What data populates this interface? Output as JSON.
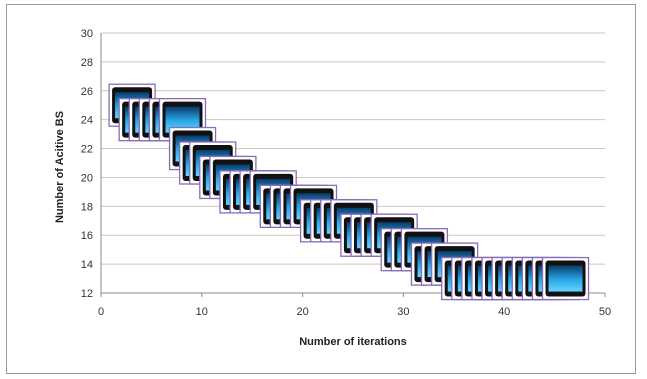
{
  "chart_data": {
    "type": "scatter",
    "title": "",
    "xlabel": "Number of iterations",
    "ylabel": "Number of Acitive BS",
    "xlim": [
      0,
      50
    ],
    "ylim": [
      12,
      30
    ],
    "x_ticks": [
      "0",
      "10",
      "20",
      "30",
      "40",
      "50"
    ],
    "y_ticks": [
      "12",
      "14",
      "16",
      "18",
      "20",
      "22",
      "24",
      "26",
      "28",
      "30"
    ],
    "grid": true,
    "marker": "base-station-icon",
    "points": [
      {
        "x": 1,
        "y": 25
      },
      {
        "x": 2,
        "y": 24
      },
      {
        "x": 3,
        "y": 24
      },
      {
        "x": 4,
        "y": 24
      },
      {
        "x": 5,
        "y": 24
      },
      {
        "x": 6,
        "y": 24
      },
      {
        "x": 7,
        "y": 22
      },
      {
        "x": 8,
        "y": 21
      },
      {
        "x": 9,
        "y": 21
      },
      {
        "x": 10,
        "y": 20
      },
      {
        "x": 11,
        "y": 20
      },
      {
        "x": 12,
        "y": 19
      },
      {
        "x": 13,
        "y": 19
      },
      {
        "x": 14,
        "y": 19
      },
      {
        "x": 15,
        "y": 19
      },
      {
        "x": 16,
        "y": 18
      },
      {
        "x": 17,
        "y": 18
      },
      {
        "x": 18,
        "y": 18
      },
      {
        "x": 19,
        "y": 18
      },
      {
        "x": 20,
        "y": 17
      },
      {
        "x": 21,
        "y": 17
      },
      {
        "x": 22,
        "y": 17
      },
      {
        "x": 23,
        "y": 17
      },
      {
        "x": 24,
        "y": 16
      },
      {
        "x": 25,
        "y": 16
      },
      {
        "x": 26,
        "y": 16
      },
      {
        "x": 27,
        "y": 16
      },
      {
        "x": 28,
        "y": 15
      },
      {
        "x": 29,
        "y": 15
      },
      {
        "x": 30,
        "y": 15
      },
      {
        "x": 31,
        "y": 14
      },
      {
        "x": 32,
        "y": 14
      },
      {
        "x": 33,
        "y": 14
      },
      {
        "x": 34,
        "y": 13
      },
      {
        "x": 35,
        "y": 13
      },
      {
        "x": 36,
        "y": 13
      },
      {
        "x": 37,
        "y": 13
      },
      {
        "x": 38,
        "y": 13
      },
      {
        "x": 39,
        "y": 13
      },
      {
        "x": 40,
        "y": 13
      },
      {
        "x": 41,
        "y": 13
      },
      {
        "x": 42,
        "y": 13
      },
      {
        "x": 43,
        "y": 13
      },
      {
        "x": 44,
        "y": 13
      }
    ],
    "colors": {
      "marker_border": "#8a6db8",
      "marker_frame": "#111111",
      "screen_top": "#0b3a6a",
      "screen_mid": "#2aa9e8",
      "screen_bottom": "#66d4ff",
      "grid": "#c8c8c8",
      "axis": "#8c8c8c"
    }
  }
}
